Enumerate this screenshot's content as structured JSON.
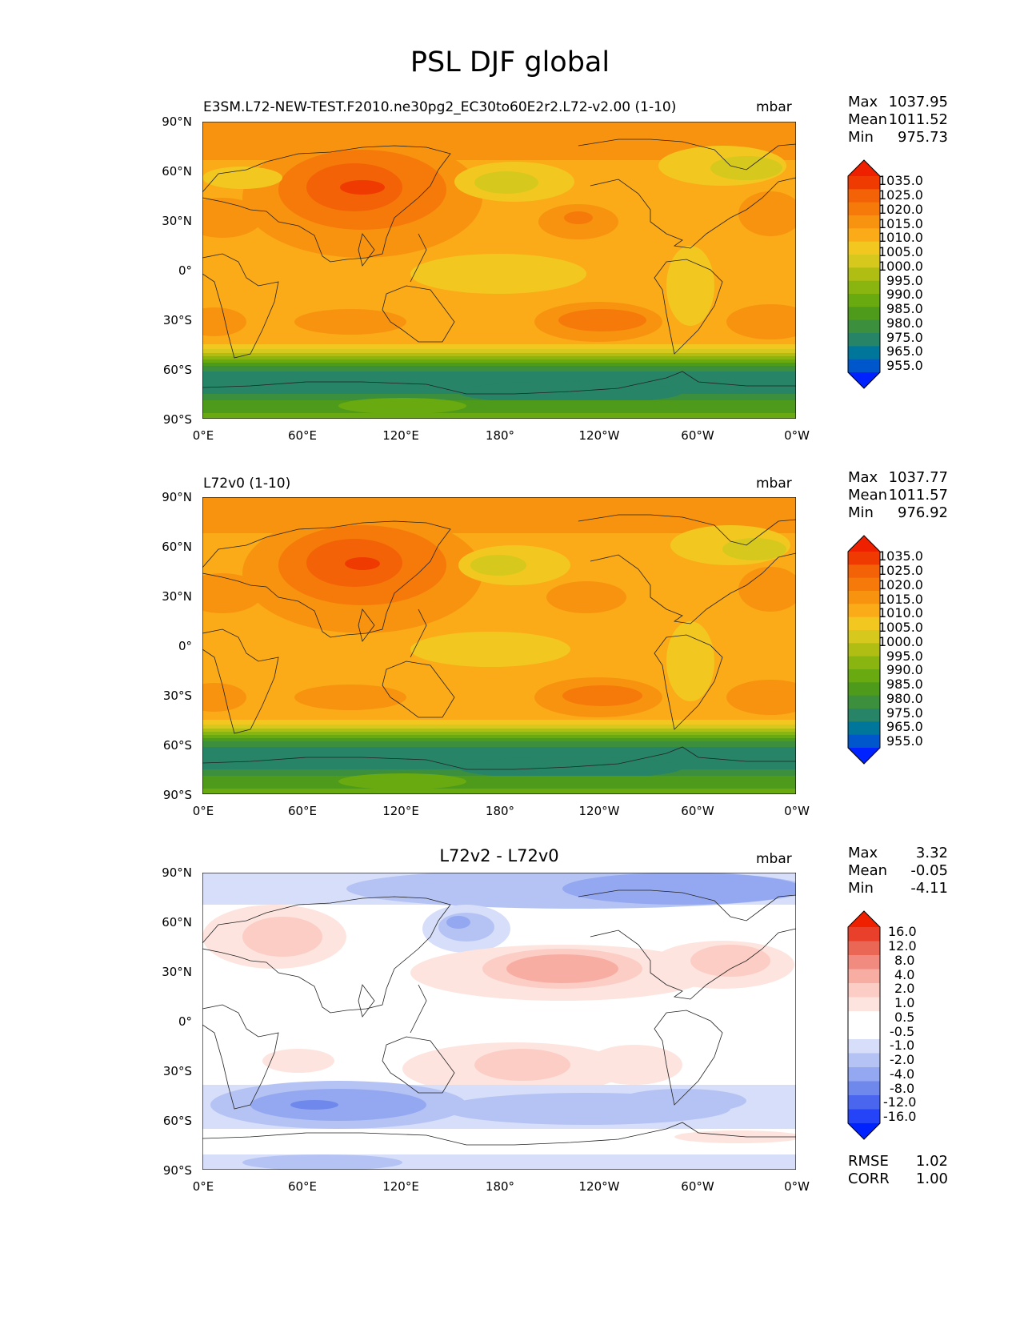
{
  "figure_title": "PSL DJF global",
  "colorbar_colors_abs": [
    "#0022ff",
    "#0057cc",
    "#00779a",
    "#278466",
    "#3c8f3c",
    "#4e9a1a",
    "#69aa10",
    "#8ab510",
    "#b0be14",
    "#d6c81c",
    "#f2c820",
    "#fbab18",
    "#f8930f",
    "#f67a0a",
    "#f36206",
    "#ef3a02",
    "#ee2000"
  ],
  "colorbar_colors_diff": [
    "#0022ff",
    "#2544f7",
    "#4a66ef",
    "#6f88ec",
    "#93a8f0",
    "#b5c3f4",
    "#d6def9",
    "#ffffff",
    "#ffffff",
    "#fde4df",
    "#fccdc4",
    "#f8ada3",
    "#f18b80",
    "#ea6655",
    "#e9402b",
    "#ee2000"
  ],
  "panels": [
    {
      "id": "test",
      "title_left": "E3SM.L72-NEW-TEST.F2010.ne30pg2_EC30to60E2r2.L72-v2.00 (1-10)",
      "title_center": "",
      "units": "mbar",
      "stats": [
        {
          "label": "Max",
          "value": "1037.95"
        },
        {
          "label": "Mean",
          "value": "1011.52"
        },
        {
          "label": "Min",
          "value": "975.73"
        }
      ],
      "colorbar_ticks": [
        "1035.0",
        "1025.0",
        "1020.0",
        "1015.0",
        "1010.0",
        "1005.0",
        "1000.0",
        "995.0",
        "990.0",
        "985.0",
        "980.0",
        "975.0",
        "965.0",
        "955.0"
      ],
      "lat_ticks": [
        "90°N",
        "60°N",
        "30°N",
        "0°",
        "30°S",
        "60°S",
        "90°S"
      ],
      "lon_ticks": [
        "0°E",
        "60°E",
        "120°E",
        "180°",
        "120°W",
        "60°W",
        "0°W"
      ]
    },
    {
      "id": "ref",
      "title_left": "L72v0 (1-10)",
      "title_center": "",
      "units": "mbar",
      "stats": [
        {
          "label": "Max",
          "value": "1037.77"
        },
        {
          "label": "Mean",
          "value": "1011.57"
        },
        {
          "label": "Min",
          "value": "976.92"
        }
      ],
      "colorbar_ticks": [
        "1035.0",
        "1025.0",
        "1020.0",
        "1015.0",
        "1010.0",
        "1005.0",
        "1000.0",
        "995.0",
        "990.0",
        "985.0",
        "980.0",
        "975.0",
        "965.0",
        "955.0"
      ],
      "lat_ticks": [
        "90°N",
        "60°N",
        "30°N",
        "0°",
        "30°S",
        "60°S",
        "90°S"
      ],
      "lon_ticks": [
        "0°E",
        "60°E",
        "120°E",
        "180°",
        "120°W",
        "60°W",
        "0°W"
      ]
    },
    {
      "id": "diff",
      "title_left": "",
      "title_center": "L72v2 - L72v0",
      "units": "mbar",
      "stats": [
        {
          "label": "Max",
          "value": "3.32"
        },
        {
          "label": "Mean",
          "value": "-0.05"
        },
        {
          "label": "Min",
          "value": "-4.11"
        }
      ],
      "colorbar_ticks": [
        "16.0",
        "12.0",
        "8.0",
        "4.0",
        "2.0",
        "1.0",
        "0.5",
        "-0.5",
        "-1.0",
        "-2.0",
        "-4.0",
        "-8.0",
        "-12.0",
        "-16.0"
      ],
      "lat_ticks": [
        "90°N",
        "60°N",
        "30°N",
        "0°",
        "30°S",
        "60°S",
        "90°S"
      ],
      "lon_ticks": [
        "0°E",
        "60°E",
        "120°E",
        "180°",
        "120°W",
        "60°W",
        "0°W"
      ],
      "metrics": [
        {
          "label": "RMSE",
          "value": "1.02"
        },
        {
          "label": "CORR",
          "value": "1.00"
        }
      ]
    }
  ]
}
